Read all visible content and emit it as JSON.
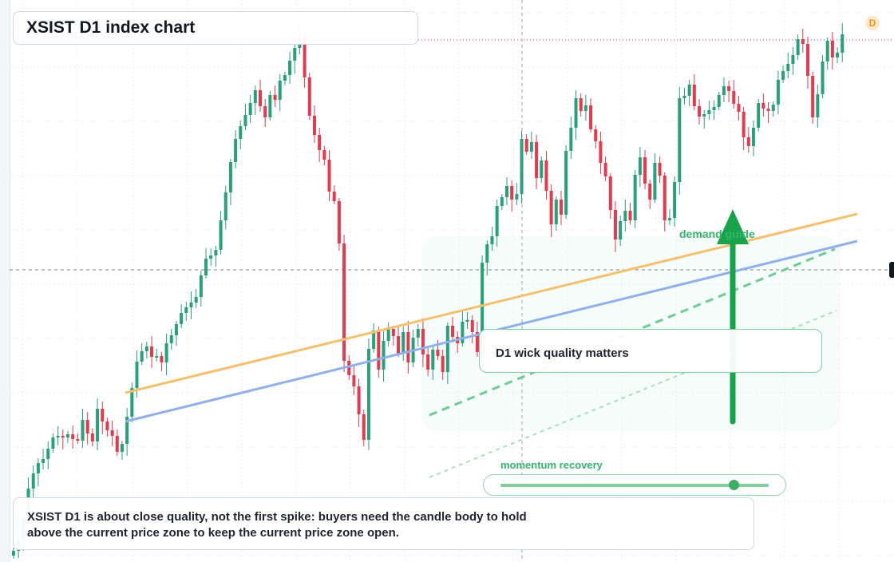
{
  "title": "XSIST D1 index chart",
  "timeframe_badge": "D",
  "annotations": {
    "callout": "D1 wick quality matters",
    "demand": "demand guide",
    "momentum": "momentum recovery",
    "momentum_level": 0.87,
    "note_line1": "XSIST D1 is about close quality, not the first spike: buyers need the candle body to hold",
    "note_line2": "above the current price zone to keep the current price zone open."
  },
  "colors": {
    "up": "#26a17b",
    "down": "#e5394d",
    "trend_orange": "#f5c06e",
    "trend_blue": "#8fb0ea",
    "guide_green": "#34b36a",
    "arrow": "#16a34a"
  },
  "chart_data": {
    "type": "candlestick",
    "price_range": [
      0,
      704
    ],
    "ohlc_close_sequence": [
      690,
      676,
      650,
      612,
      593,
      580,
      575,
      562,
      548,
      546,
      548,
      544,
      550,
      552,
      526,
      543,
      553,
      512,
      528,
      539,
      546,
      566,
      556,
      522,
      486,
      453,
      440,
      434,
      447,
      446,
      454,
      430,
      420,
      406,
      392,
      385,
      379,
      372,
      345,
      324,
      320,
      313,
      276,
      241,
      203,
      174,
      158,
      144,
      129,
      113,
      133,
      147,
      119,
      125,
      101,
      94,
      76,
      60,
      48,
      97,
      145,
      169,
      188,
      200,
      240,
      252,
      305,
      452,
      470,
      484,
      519,
      551,
      437,
      414,
      463,
      427,
      412,
      421,
      443,
      416,
      454,
      423,
      412,
      444,
      463,
      438,
      446,
      466,
      408,
      422,
      430,
      403,
      401,
      416,
      441,
      329,
      306,
      296,
      258,
      247,
      233,
      250,
      243,
      174,
      190,
      178,
      223,
      201,
      239,
      281,
      250,
      269,
      189,
      160,
      123,
      139,
      132,
      162,
      177,
      204,
      221,
      263,
      300,
      277,
      264,
      276,
      219,
      197,
      230,
      250,
      204,
      220,
      276,
      273,
      228,
      123,
      120,
      106,
      133,
      146,
      143,
      138,
      134,
      119,
      108,
      114,
      130,
      140,
      172,
      183,
      160,
      129,
      136,
      139,
      131,
      100,
      89,
      80,
      69,
      49,
      55,
      95,
      147,
      118,
      77,
      51,
      72,
      66,
      43
    ],
    "trendlines": [
      {
        "name": "orange",
        "from": [
          157,
          492
        ],
        "to": [
          1074,
          268
        ]
      },
      {
        "name": "blue",
        "from": [
          157,
          528
        ],
        "to": [
          1074,
          302
        ]
      },
      {
        "name": "green-dashed",
        "from": [
          538,
          520
        ],
        "to": [
          1046,
          312
        ]
      },
      {
        "name": "green-dotted",
        "from": [
          538,
          598
        ],
        "to": [
          1048,
          389
        ]
      }
    ],
    "current_price_line_y": 338,
    "high_line_y": 50,
    "grid": true
  }
}
